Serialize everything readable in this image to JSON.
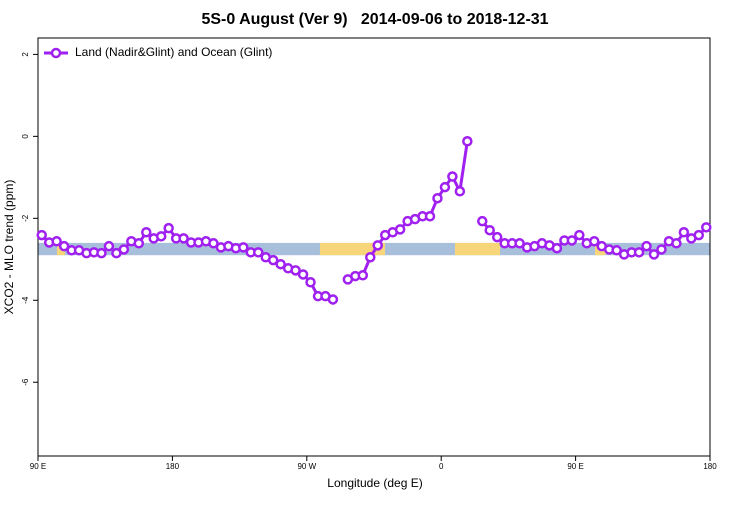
{
  "chart_data": {
    "type": "line",
    "title": "5S-0 August (Ver 9)   2014-09-06 to 2018-12-31",
    "x_label": "Longitude (deg E)",
    "y_label": "XCO2 - MLO trend (ppm)",
    "xlim": [
      90,
      540
    ],
    "ylim": [
      -7.8,
      2.4
    ],
    "xticks": [
      {
        "value": 90,
        "label": "90 E"
      },
      180,
      {
        "value": 270,
        "label": "90 W"
      },
      {
        "value": 360,
        "label": "0"
      },
      {
        "value": 450,
        "label": "90 E"
      },
      {
        "value": 540,
        "label": "180"
      }
    ],
    "yticks": [
      2,
      0,
      -2,
      -4,
      -6
    ],
    "legend": "top-left",
    "band": {
      "range": [
        -2.9,
        -2.6
      ],
      "land_color": "#a8bfdc",
      "ocean_color": "#f7d67a",
      "ocean_segments": [
        [
          102.7,
          108
        ],
        [
          278.8,
          322.4
        ],
        [
          369.2,
          399.4
        ],
        [
          463,
          470
        ]
      ]
    },
    "x": [
      92.5,
      97.5,
      102.5,
      107.5,
      112.5,
      117.5,
      122.5,
      127.5,
      132.5,
      137.5,
      142.5,
      147.5,
      152.5,
      157.5,
      162.5,
      167.5,
      172.5,
      177.5,
      182.5,
      187.5,
      192.5,
      197.5,
      202.5,
      207.5,
      212.5,
      217.5,
      222.5,
      227.5,
      232.5,
      237.5,
      242.5,
      247.5,
      252.5,
      257.5,
      262.5,
      267.5,
      272.5,
      277.5,
      282.5,
      287.5,
      292.5,
      297.5,
      302.5,
      307.5,
      312.5,
      317.5,
      322.5,
      327.5,
      332.5,
      337.5,
      342.5,
      347.5,
      352.5,
      357.5,
      362.5,
      367.5,
      372.5,
      377.5,
      382.5,
      387.5,
      392.5,
      397.5,
      402.5,
      407.5,
      412.5,
      417.5,
      422.5,
      427.5,
      432.5,
      437.5,
      442.5,
      447.5,
      452.5,
      457.5,
      462.5,
      467.5,
      472.5,
      477.5,
      482.5,
      487.5,
      492.5,
      497.5,
      502.5,
      507.5,
      512.5,
      517.5,
      522.5,
      527.5,
      532.5,
      537.5
    ],
    "series": [
      {
        "name": "Land (Nadir&Glint) and Ocean (Glint)",
        "color": "#a020f0",
        "values": [
          -2.41,
          -2.59,
          -2.56,
          -2.68,
          -2.78,
          -2.78,
          -2.85,
          -2.83,
          -2.85,
          -2.68,
          -2.85,
          -2.76,
          -2.56,
          -2.61,
          -2.34,
          -2.49,
          -2.44,
          -2.24,
          -2.49,
          -2.49,
          -2.59,
          -2.59,
          -2.56,
          -2.61,
          -2.71,
          -2.68,
          -2.73,
          -2.71,
          -2.83,
          -2.83,
          -2.95,
          -3.02,
          -3.12,
          -3.22,
          -3.27,
          -3.37,
          -3.56,
          -3.9,
          -3.9,
          -3.98,
          null,
          -3.49,
          -3.41,
          -3.39,
          -2.95,
          -2.66,
          -2.41,
          -2.34,
          -2.27,
          -2.07,
          -2.02,
          -1.95,
          -1.95,
          -1.51,
          -1.24,
          -0.98,
          -1.34,
          -0.12,
          null,
          -2.07,
          -2.29,
          -2.46,
          -2.61,
          -2.61,
          -2.61,
          -2.71,
          -2.68,
          -2.61,
          -2.66,
          -2.73,
          -2.54,
          -2.54,
          -2.41,
          -2.61,
          -2.56,
          -2.68,
          -2.76,
          -2.78,
          -2.88,
          -2.83,
          -2.83,
          -2.68,
          -2.88,
          -2.76,
          -2.56,
          -2.61,
          -2.34,
          -2.49,
          -2.41,
          -2.22
        ]
      }
    ]
  }
}
